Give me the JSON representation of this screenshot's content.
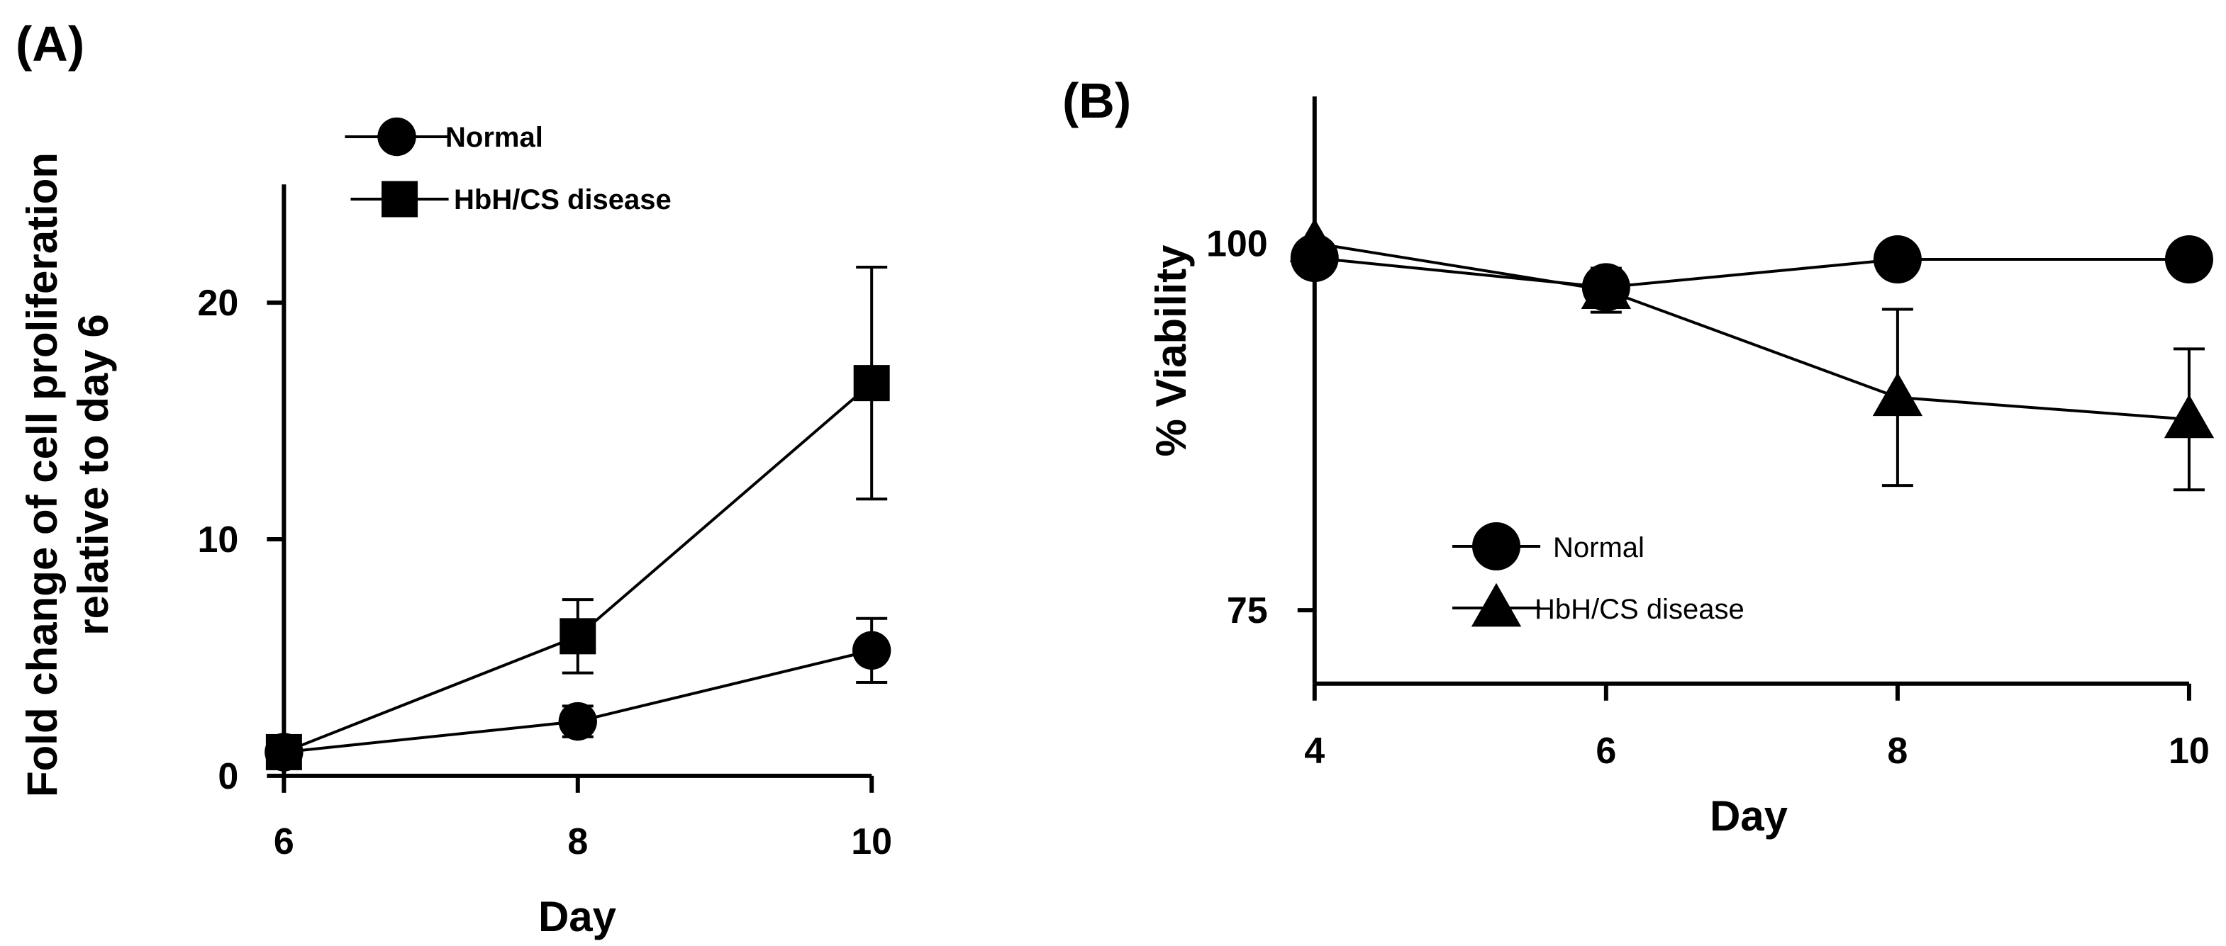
{
  "chart_data": [
    {
      "type": "line",
      "panel_label": "(A)",
      "xlabel": "Day",
      "ylabel": [
        "Fold change of cell proliferation",
        "relative to day 6"
      ],
      "x": [
        6,
        8,
        10
      ],
      "xlim": [
        6,
        10
      ],
      "ylim": [
        0,
        25
      ],
      "xticks": [
        6,
        8,
        10
      ],
      "yticks": [
        0,
        10,
        20
      ],
      "grid": false,
      "legend_position": "top",
      "series": [
        {
          "name": "Normal",
          "marker": "circle",
          "values": [
            1,
            2.3,
            5.3
          ],
          "err": [
            0,
            0.65,
            1.35
          ]
        },
        {
          "name": "HbH/CS disease",
          "marker": "square",
          "values": [
            1,
            5.9,
            16.6
          ],
          "err": [
            0,
            1.55,
            4.9
          ]
        }
      ]
    },
    {
      "type": "line",
      "panel_label": "(B)",
      "xlabel": "Day",
      "ylabel": "% Viability",
      "x": [
        4,
        6,
        8,
        10
      ],
      "xlim": [
        4,
        10
      ],
      "ylim": [
        70,
        110
      ],
      "xticks": [
        4,
        6,
        8,
        10
      ],
      "yticks": [
        75,
        100
      ],
      "grid": false,
      "legend_position": "bottom-center",
      "series": [
        {
          "name": "Normal",
          "marker": "circle",
          "values": [
            99,
            97,
            98.9,
            98.9
          ],
          "err": [
            0,
            0,
            0,
            0
          ]
        },
        {
          "name": "HbH/CS disease",
          "marker": "triangle",
          "values": [
            100,
            96.8,
            89.5,
            88
          ],
          "err": [
            0,
            1.5,
            6,
            4.8
          ]
        }
      ]
    }
  ],
  "colors": {
    "ink": "#000000",
    "background": "#ffffff"
  }
}
